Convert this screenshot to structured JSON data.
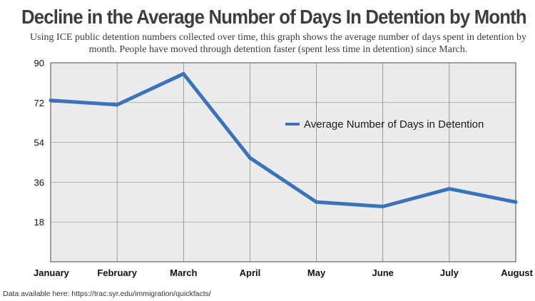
{
  "title": "Decline in the Average Number of Days In Detention by Month",
  "subtitle": "Using ICE public detention numbers collected over time, this graph shows the average number of days spent in detention by month. People have moved through detention faster (spent less time in detention) since March.",
  "footnote": "Data available here: https://trac.syr.edu/immigration/quickfacts/",
  "colors": {
    "line": "#3a73b9",
    "plot_bg": "#ebebeb",
    "grid": "#7a7a7a"
  },
  "chart_data": {
    "type": "line",
    "title": "Decline in the Average Number of Days In Detention by Month",
    "xlabel": "",
    "ylabel": "",
    "categories": [
      "January",
      "February",
      "March",
      "April",
      "May",
      "June",
      "July",
      "August"
    ],
    "ylim": [
      0,
      90
    ],
    "yticks": [
      18,
      36,
      54,
      72,
      90
    ],
    "series": [
      {
        "name": "Average Number of Days in Detention",
        "values": [
          73,
          71,
          85,
          47,
          27,
          25,
          33,
          27
        ]
      }
    ],
    "legend": "right-center",
    "grid": true
  }
}
